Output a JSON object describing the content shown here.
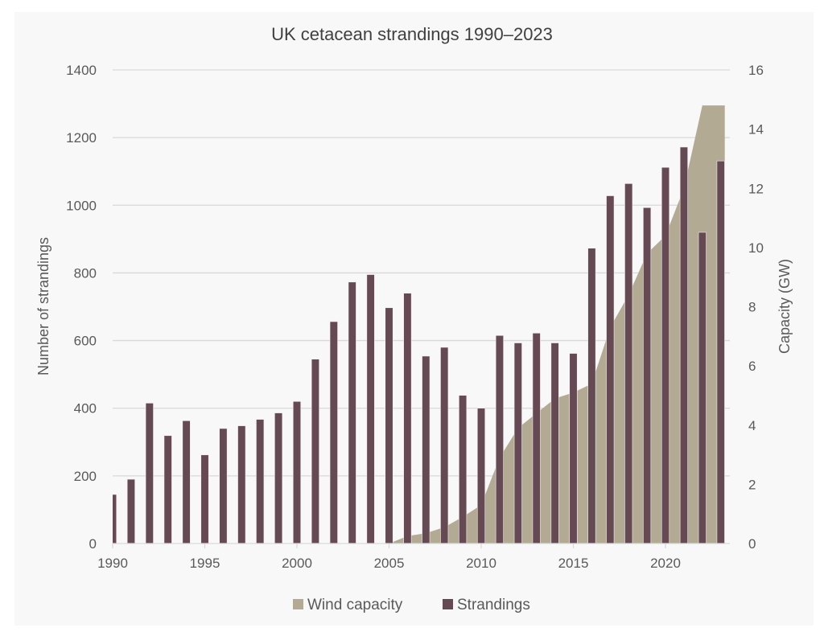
{
  "chart_data": {
    "type": "bar",
    "title": "UK cetacean strandings 1990–2023",
    "xlabel": "",
    "ylabel": "Number of strandings",
    "y2label": "Capacity (GW)",
    "ylim": [
      0,
      1400
    ],
    "y2lim": [
      0,
      16
    ],
    "yticks": [
      0,
      200,
      400,
      600,
      800,
      1000,
      1200,
      1400
    ],
    "y2ticks": [
      0,
      2,
      4,
      6,
      8,
      10,
      12,
      14,
      16
    ],
    "xticks": [
      1990,
      1995,
      2000,
      2005,
      2010,
      2015,
      2020
    ],
    "grid": true,
    "legend_position": "bottom",
    "x": [
      1990,
      1991,
      1992,
      1993,
      1994,
      1995,
      1996,
      1997,
      1998,
      1999,
      2000,
      2001,
      2002,
      2003,
      2004,
      2005,
      2006,
      2007,
      2008,
      2009,
      2010,
      2011,
      2012,
      2013,
      2014,
      2015,
      2016,
      2017,
      2018,
      2019,
      2020,
      2021,
      2022,
      2023
    ],
    "series": [
      {
        "name": "Wind capacity",
        "type": "area",
        "axis": "right",
        "color": "#b3aa93",
        "values": [
          0,
          0,
          0,
          0,
          0,
          0,
          0,
          0,
          0,
          0,
          0,
          0,
          0,
          0,
          0,
          0,
          0.25,
          0.35,
          0.55,
          0.9,
          1.3,
          2.9,
          3.9,
          4.4,
          4.9,
          5.1,
          5.4,
          7.3,
          8.4,
          9.8,
          10.4,
          12.0,
          14.8,
          14.8
        ]
      },
      {
        "name": "Strandings",
        "type": "bar",
        "axis": "left",
        "color": "#654a54",
        "values": [
          145,
          190,
          415,
          319,
          363,
          262,
          340,
          348,
          367,
          386,
          420,
          545,
          656,
          773,
          795,
          697,
          740,
          554,
          580,
          438,
          400,
          615,
          593,
          622,
          593,
          562,
          873,
          1028,
          1064,
          993,
          1112,
          1172,
          920,
          1131
        ]
      }
    ]
  }
}
